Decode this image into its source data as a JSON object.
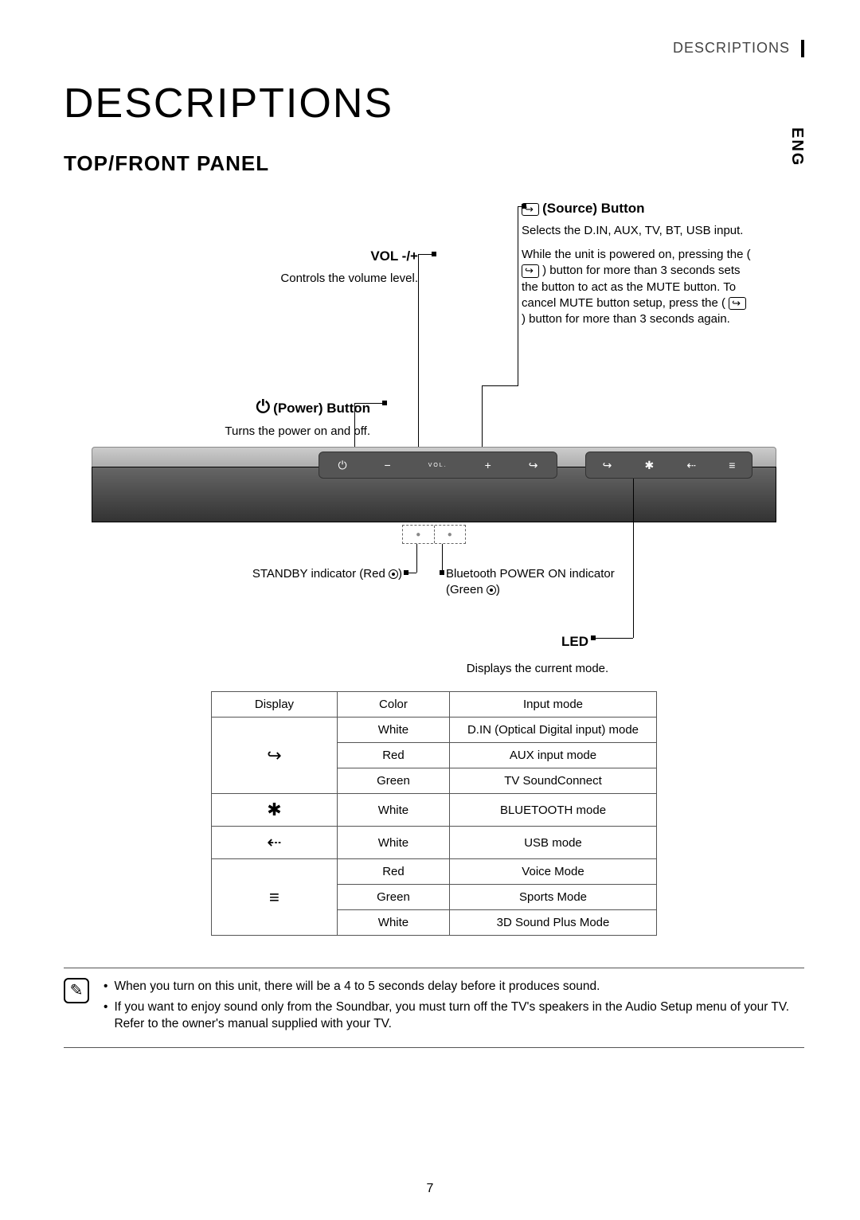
{
  "header_section": "DESCRIPTIONS",
  "lang": "ENG",
  "title": "DESCRIPTIONS",
  "section": "TOP/FRONT PANEL",
  "page_number": "7",
  "callouts": {
    "source": {
      "icon": "↪",
      "label": "Source) Button",
      "desc1": "Selects the D.IN, AUX, TV, BT, USB input.",
      "desc2_a": "While the unit is powered on, pressing the (",
      "desc2_b": ") button for more than 3 seconds sets the button to act as the MUTE button. To cancel MUTE button setup, press the (",
      "desc2_c": ") button for more than 3 seconds again."
    },
    "vol": {
      "label": "VOL -/+",
      "desc": "Controls the volume level."
    },
    "power": {
      "icon": "⏻",
      "label": "Power) Button",
      "desc": "Turns the power on and off."
    },
    "standby": {
      "text_a": "STANDBY indicator (Red ",
      "text_b": ")"
    },
    "bluetooth": {
      "text_a": "Bluetooth POWER ON indicator (Green ",
      "text_b": ")"
    },
    "led": {
      "label": "LED",
      "desc": "Displays the current mode."
    }
  },
  "panel_icons": {
    "power": "⏻",
    "minus": "−",
    "vol": "VOL.",
    "plus": "+",
    "source": "↪",
    "led1": "↪",
    "led2": "✱",
    "led3": "⇠",
    "led4": "≡"
  },
  "table": {
    "headers": [
      "Display",
      "Color",
      "Input mode"
    ],
    "groups": [
      {
        "icon": "↪",
        "rows": [
          {
            "color": "White",
            "mode": "D.IN (Optical Digital input) mode"
          },
          {
            "color": "Red",
            "mode": "AUX input mode"
          },
          {
            "color": "Green",
            "mode": "TV SoundConnect"
          }
        ]
      },
      {
        "icon": "✱",
        "rows": [
          {
            "color": "White",
            "mode": "BLUETOOTH mode"
          }
        ]
      },
      {
        "icon": "⇠",
        "rows": [
          {
            "color": "White",
            "mode": "USB mode"
          }
        ]
      },
      {
        "icon": "≡",
        "rows": [
          {
            "color": "Red",
            "mode": "Voice Mode"
          },
          {
            "color": "Green",
            "mode": "Sports Mode"
          },
          {
            "color": "White",
            "mode": "3D Sound Plus Mode"
          }
        ]
      }
    ]
  },
  "notes": [
    "When you turn on this unit, there will be a 4 to 5 seconds delay before it produces sound.",
    "If you want to enjoy sound only from the Soundbar, you must turn off the TV's speakers in the Audio Setup menu of your TV. Refer to the owner's manual supplied with your TV."
  ],
  "colors": {
    "text": "#000000",
    "grey_text": "#444444",
    "table_border": "#555555",
    "soundbar_dark": "#333333",
    "soundbar_light": "#cccccc"
  }
}
